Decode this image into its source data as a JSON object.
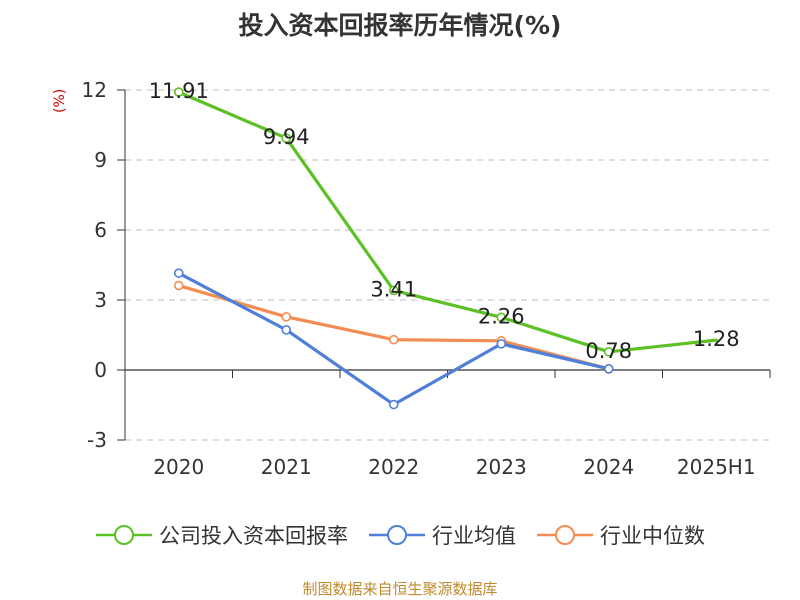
{
  "title": "投入资本回报率历年情况(%)",
  "unit_label": "(%)",
  "source": "制图数据来自恒生聚源数据库",
  "chart_data": {
    "type": "line",
    "title": "投入资本回报率历年情况(%)",
    "ylabel": "(%)",
    "categories": [
      "2020",
      "2021",
      "2022",
      "2023",
      "2024",
      "2025H1"
    ],
    "ylim": [
      -3,
      12
    ],
    "yticks": [
      -3,
      0,
      3,
      6,
      9,
      12
    ],
    "ytick_labels": [
      "-3",
      "0",
      "3",
      "6",
      "9",
      "12"
    ],
    "grid": true,
    "legend_position": "bottom",
    "series": [
      {
        "name": "公司投入资本回报率",
        "color": "#5cc125",
        "values": [
          11.91,
          9.94,
          3.41,
          2.26,
          0.78,
          1.28
        ],
        "labels": [
          "11.91",
          "9.94",
          "3.41",
          "2.26",
          "0.78",
          "1.28"
        ],
        "markers": [
          true,
          true,
          true,
          true,
          true,
          false
        ]
      },
      {
        "name": "行业均值",
        "color": "#4f7fd8",
        "values": [
          4.15,
          1.72,
          -1.48,
          1.12,
          0.05,
          null
        ],
        "labels": null,
        "markers": [
          true,
          true,
          true,
          true,
          true,
          false
        ]
      },
      {
        "name": "行业中位数",
        "color": "#f28c50",
        "values": [
          3.62,
          2.28,
          1.3,
          1.25,
          0.05,
          null
        ],
        "labels": null,
        "markers": [
          true,
          true,
          true,
          true,
          true,
          false
        ]
      }
    ]
  }
}
